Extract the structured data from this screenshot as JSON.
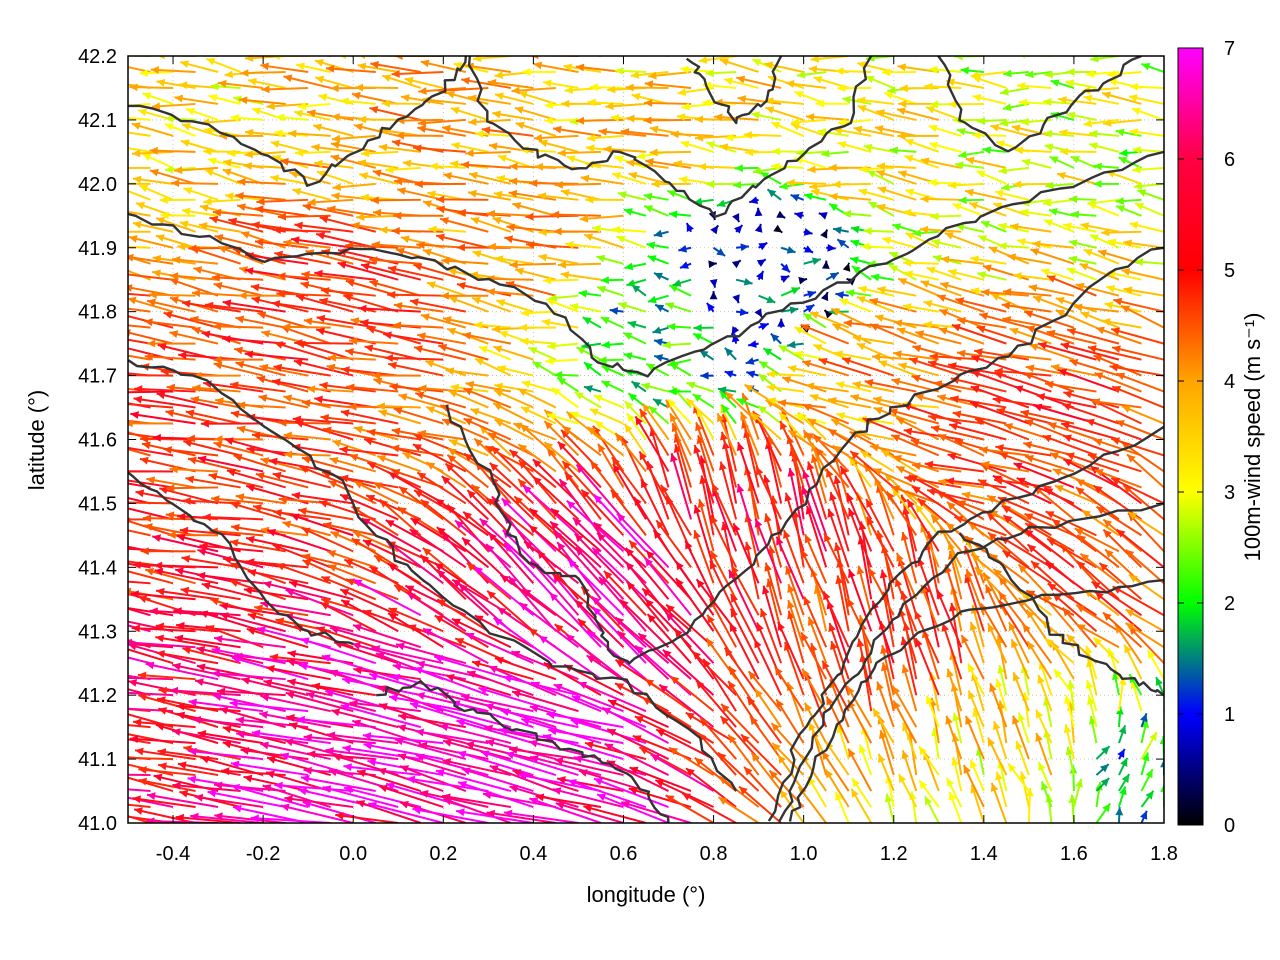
{
  "chart_data": {
    "type": "scatter",
    "subtype": "vector-field",
    "title": "",
    "xlabel": "longitude (°)",
    "ylabel": "latitude (°)",
    "xlim": [
      -0.5,
      1.8
    ],
    "ylim": [
      41.0,
      42.2
    ],
    "xticks": [
      -0.4,
      -0.2,
      0.0,
      0.2,
      0.4,
      0.6,
      0.8,
      1.0,
      1.2,
      1.4,
      1.6,
      1.8
    ],
    "xtick_labels": [
      "-0.4",
      "-0.2",
      "0.0",
      "0.2",
      "0.4",
      "0.6",
      "0.8",
      "1.0",
      "1.2",
      "1.4",
      "1.6",
      "1.8"
    ],
    "yticks": [
      41.0,
      41.1,
      41.2,
      41.3,
      41.4,
      41.5,
      41.6,
      41.7,
      41.8,
      41.9,
      42.0,
      42.1,
      42.2
    ],
    "ytick_labels": [
      "41.0",
      "41.1",
      "41.2",
      "41.3",
      "41.4",
      "41.5",
      "41.6",
      "41.7",
      "41.8",
      "41.9",
      "42.0",
      "42.1",
      "42.2"
    ],
    "grid": true,
    "colorbar": {
      "label": "100m-wind speed (m s⁻¹)",
      "range": [
        0,
        7
      ],
      "ticks": [
        0,
        1,
        2,
        3,
        4,
        5,
        6,
        7
      ],
      "tick_labels": [
        "0",
        "1",
        "2",
        "3",
        "4",
        "5",
        "6",
        "7"
      ],
      "colors": [
        "#000000",
        "#0000ff",
        "#00ff00",
        "#ffff00",
        "#ffa500",
        "#ff0000",
        "#ff00ff"
      ]
    },
    "contour_color": "#333333",
    "wind_field_samples": [
      {
        "lon": -0.4,
        "lat": 41.05,
        "u": -5.8,
        "v": 0.9
      },
      {
        "lon": 0.0,
        "lat": 41.05,
        "u": -6.5,
        "v": 1.2
      },
      {
        "lon": 0.4,
        "lat": 41.1,
        "u": -6.8,
        "v": 1.6
      },
      {
        "lon": 0.6,
        "lat": 41.35,
        "u": -4.5,
        "v": 4.5
      },
      {
        "lon": 0.9,
        "lat": 41.45,
        "u": -1.5,
        "v": 5.5
      },
      {
        "lon": 1.2,
        "lat": 41.3,
        "u": -1.5,
        "v": 5.0
      },
      {
        "lon": 1.5,
        "lat": 41.1,
        "u": -1.2,
        "v": 3.2
      },
      {
        "lon": 1.7,
        "lat": 41.05,
        "u": 0.8,
        "v": 1.6
      },
      {
        "lon": -0.4,
        "lat": 41.6,
        "u": -5.2,
        "v": 0.7
      },
      {
        "lon": 0.0,
        "lat": 41.8,
        "u": -5.0,
        "v": 0.8
      },
      {
        "lon": 0.4,
        "lat": 41.9,
        "u": -4.2,
        "v": 0.6
      },
      {
        "lon": 0.7,
        "lat": 41.8,
        "u": -2.0,
        "v": 0.2
      },
      {
        "lon": 0.9,
        "lat": 41.85,
        "u": 1.0,
        "v": 0.0
      },
      {
        "lon": 1.2,
        "lat": 41.7,
        "u": -4.0,
        "v": 1.0
      },
      {
        "lon": 1.5,
        "lat": 41.6,
        "u": -5.0,
        "v": 1.2
      },
      {
        "lon": 1.7,
        "lat": 41.4,
        "u": -4.0,
        "v": 2.8
      },
      {
        "lon": -0.3,
        "lat": 42.1,
        "u": -3.5,
        "v": 0.5
      },
      {
        "lon": 0.2,
        "lat": 42.05,
        "u": -4.0,
        "v": 0.4
      },
      {
        "lon": 0.7,
        "lat": 42.1,
        "u": -3.6,
        "v": 0.3
      },
      {
        "lon": 1.2,
        "lat": 42.05,
        "u": -3.2,
        "v": 0.5
      },
      {
        "lon": 1.6,
        "lat": 42.1,
        "u": -2.8,
        "v": 0.3
      }
    ]
  }
}
